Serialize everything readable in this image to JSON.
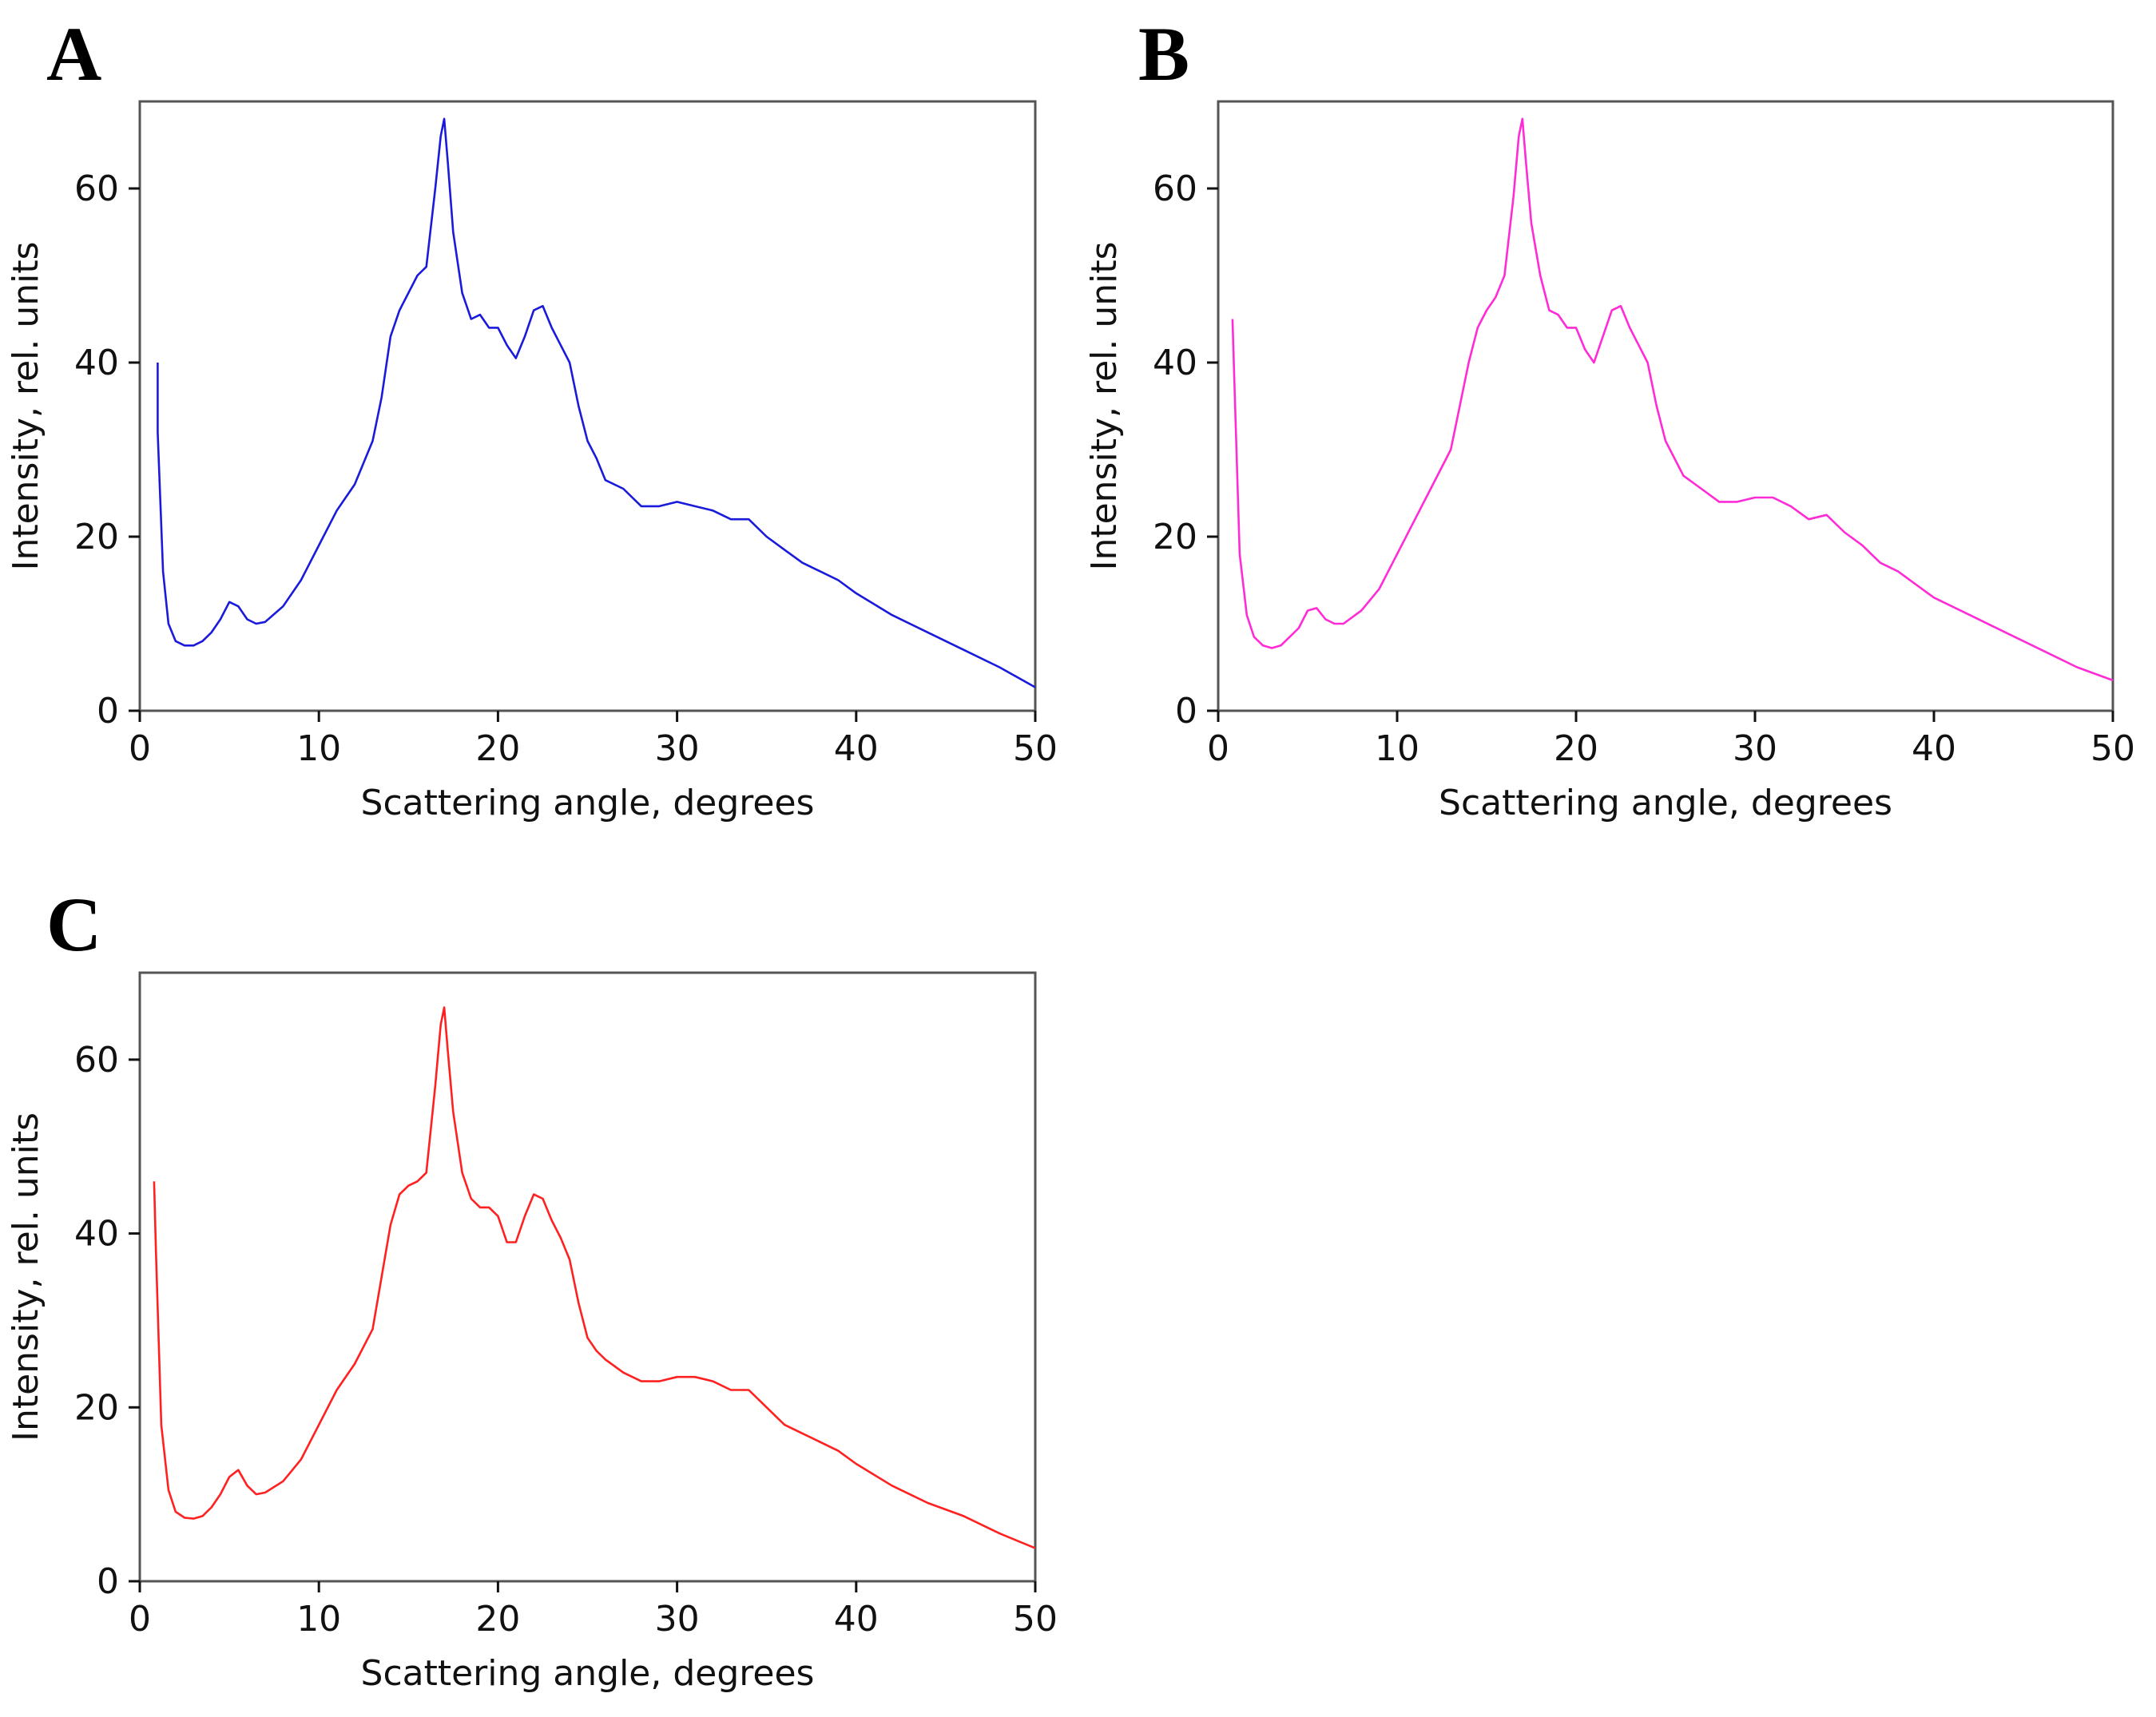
{
  "chart_data": [
    {
      "panel_label": "A",
      "type": "line",
      "color": "#1a1adb",
      "xlabel": "Scattering angle, degrees",
      "ylabel": "Intensity, rel. units",
      "xlim": [
        0,
        50
      ],
      "ylim": [
        0,
        70
      ],
      "xticks": [
        0,
        10,
        20,
        30,
        40,
        50
      ],
      "yticks": [
        0,
        20,
        40,
        60
      ],
      "grid": false,
      "x": [
        1.0,
        1.0,
        1.3,
        1.6,
        2.0,
        2.5,
        3.0,
        3.5,
        4.0,
        4.5,
        5.0,
        5.5,
        6.0,
        6.5,
        7.0,
        8.0,
        9.0,
        10.0,
        11.0,
        12.0,
        13.0,
        13.5,
        14.0,
        14.5,
        15.0,
        15.5,
        16.0,
        16.5,
        16.8,
        17.0,
        17.2,
        17.5,
        18.0,
        18.5,
        19.0,
        19.5,
        20.0,
        20.5,
        21.0,
        21.5,
        22.0,
        22.5,
        23.0,
        23.5,
        24.0,
        24.5,
        25.0,
        25.5,
        26.0,
        27.0,
        28.0,
        29.0,
        30.0,
        31.0,
        32.0,
        33.0,
        34.0,
        35.0,
        36.0,
        37.0,
        38.0,
        39.0,
        40.0,
        42.0,
        44.0,
        46.0,
        48.0,
        50.0
      ],
      "y": [
        40,
        32,
        16,
        10,
        8,
        7.5,
        7.5,
        8,
        9,
        10.5,
        12.5,
        12,
        10.5,
        10,
        10.2,
        12,
        15,
        19,
        23,
        26,
        31,
        36,
        43,
        46,
        48,
        50,
        51,
        60,
        66,
        68,
        63,
        55,
        48,
        45,
        45.5,
        44,
        44,
        42,
        40.5,
        43,
        46,
        46.5,
        44,
        42,
        40,
        35,
        31,
        29,
        26.5,
        25.5,
        23.5,
        23.5,
        24,
        23.5,
        23,
        22,
        22,
        20,
        18.5,
        17,
        16,
        15,
        13.5,
        11,
        9,
        7,
        5,
        2.7
      ]
    },
    {
      "panel_label": "B",
      "type": "line",
      "color": "#ff2bd6",
      "xlabel": "Scattering angle, degrees",
      "ylabel": "Intensity, rel. units",
      "xlim": [
        0,
        50
      ],
      "ylim": [
        0,
        70
      ],
      "xticks": [
        0,
        10,
        20,
        30,
        40,
        50
      ],
      "yticks": [
        0,
        20,
        40,
        60
      ],
      "grid": false,
      "x": [
        0.8,
        0.9,
        1.2,
        1.6,
        2.0,
        2.5,
        3.0,
        3.5,
        4.0,
        4.5,
        5.0,
        5.5,
        6.0,
        6.5,
        7.0,
        8.0,
        9.0,
        10.0,
        11.0,
        12.0,
        13.0,
        13.5,
        14.0,
        14.5,
        15.0,
        15.5,
        16.0,
        16.5,
        16.8,
        17.0,
        17.2,
        17.5,
        18.0,
        18.5,
        19.0,
        19.5,
        20.0,
        20.5,
        21.0,
        21.5,
        22.0,
        22.5,
        23.0,
        23.5,
        24.0,
        24.5,
        25.0,
        25.5,
        26.0,
        27.0,
        28.0,
        29.0,
        30.0,
        31.0,
        32.0,
        33.0,
        34.0,
        35.0,
        36.0,
        37.0,
        38.0,
        39.0,
        40.0,
        42.0,
        44.0,
        46.0,
        48.0,
        50.0
      ],
      "y": [
        45,
        38,
        18,
        11,
        8.5,
        7.5,
        7.2,
        7.5,
        8.5,
        9.5,
        11.5,
        11.8,
        10.5,
        10,
        10,
        11.5,
        14,
        18,
        22,
        26,
        30,
        35,
        40,
        44,
        46,
        47.5,
        50,
        59,
        66,
        68,
        63,
        56,
        50,
        46,
        45.5,
        44,
        44,
        41.5,
        40,
        43,
        46,
        46.5,
        44,
        42,
        40,
        35,
        31,
        29,
        27,
        25.5,
        24,
        24,
        24.5,
        24.5,
        23.5,
        22,
        22.5,
        20.5,
        19,
        17,
        16,
        14.5,
        13,
        11,
        9,
        7,
        5,
        3.5
      ]
    },
    {
      "panel_label": "C",
      "type": "line",
      "color": "#ff2020",
      "xlabel": "Scattering angle, degrees",
      "ylabel": "Intensity, rel. units",
      "xlim": [
        0,
        50
      ],
      "ylim": [
        0,
        70
      ],
      "xticks": [
        0,
        10,
        20,
        30,
        40,
        50
      ],
      "yticks": [
        0,
        20,
        40,
        60
      ],
      "grid": false,
      "x": [
        0.8,
        0.9,
        1.2,
        1.6,
        2.0,
        2.5,
        3.0,
        3.5,
        4.0,
        4.5,
        5.0,
        5.5,
        6.0,
        6.5,
        7.0,
        8.0,
        9.0,
        10.0,
        11.0,
        12.0,
        13.0,
        13.5,
        14.0,
        14.5,
        15.0,
        15.5,
        16.0,
        16.5,
        16.8,
        17.0,
        17.2,
        17.5,
        18.0,
        18.5,
        19.0,
        19.5,
        20.0,
        20.5,
        21.0,
        21.5,
        22.0,
        22.5,
        23.0,
        23.5,
        24.0,
        24.5,
        25.0,
        25.5,
        26.0,
        27.0,
        28.0,
        29.0,
        30.0,
        31.0,
        32.0,
        33.0,
        34.0,
        35.0,
        36.0,
        37.0,
        38.0,
        39.0,
        40.0,
        42.0,
        44.0,
        46.0,
        48.0,
        50.0
      ],
      "y": [
        46,
        38,
        18,
        10.5,
        8,
        7.3,
        7.2,
        7.5,
        8.5,
        10,
        12,
        12.8,
        11,
        10,
        10.2,
        11.5,
        14,
        18,
        22,
        25,
        29,
        35,
        41,
        44.5,
        45.5,
        46,
        47,
        57,
        64,
        66,
        61,
        54,
        47,
        44,
        43,
        43,
        42,
        39,
        39,
        42,
        44.5,
        44,
        41.5,
        39.5,
        37,
        32,
        28,
        26.5,
        25.5,
        24,
        23,
        23,
        23.5,
        23.5,
        23,
        22,
        22,
        20,
        18,
        17,
        16,
        15,
        13.5,
        11,
        9,
        7.5,
        5.5,
        3.8
      ]
    }
  ]
}
